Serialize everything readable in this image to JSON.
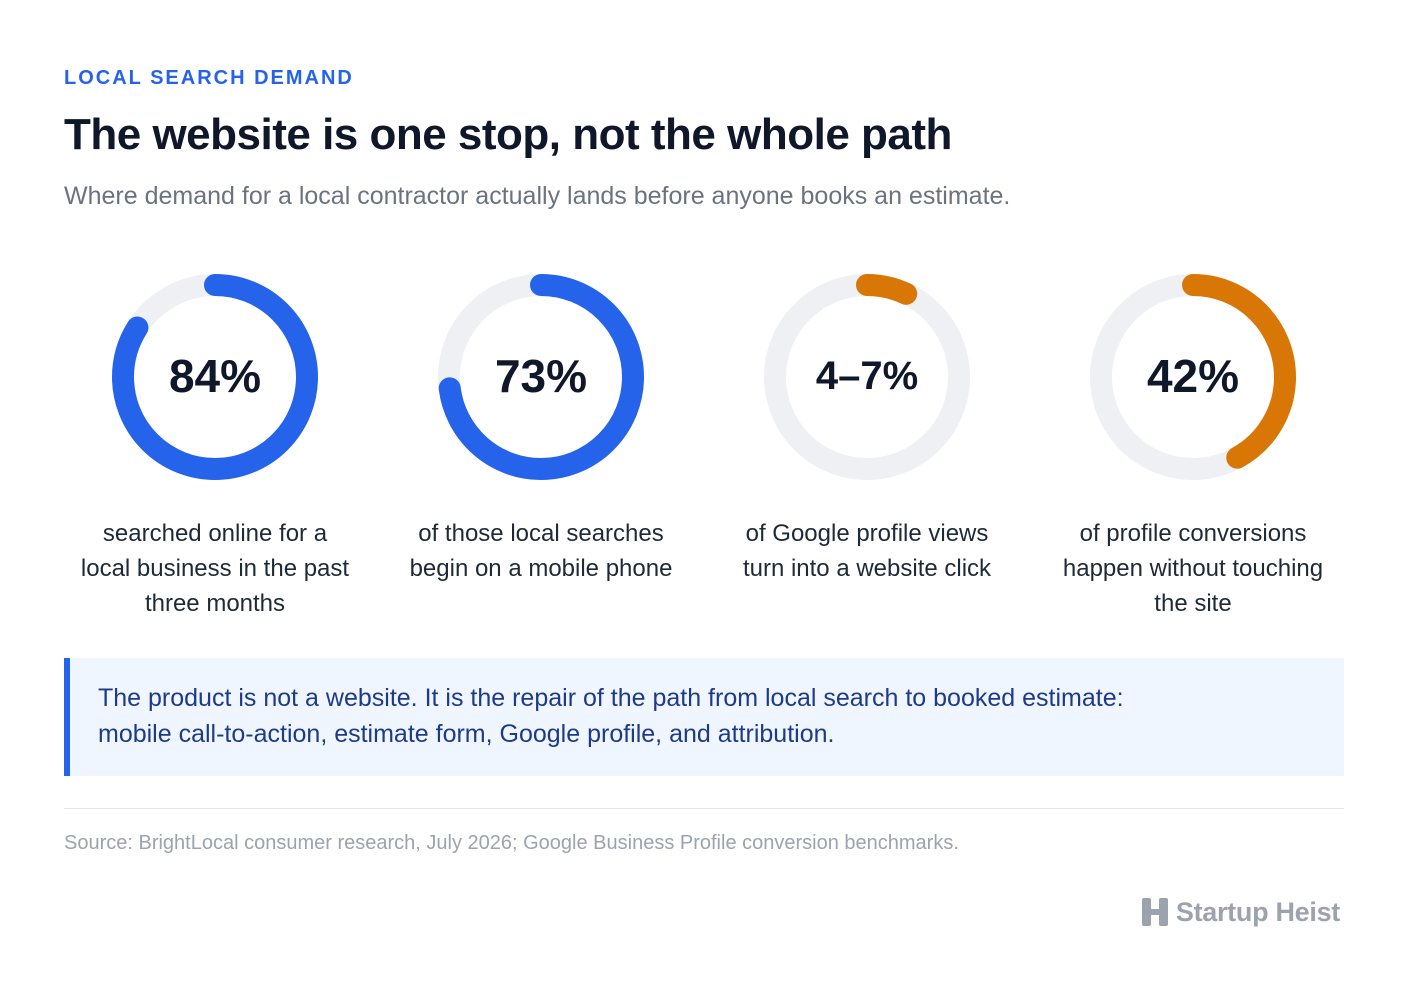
{
  "header": {
    "eyebrow": "LOCAL SEARCH DEMAND",
    "title": "The website is one stop, not the whole path",
    "subtitle": "Where demand for a local contractor actually lands before anyone books an estimate."
  },
  "chart_data": {
    "type": "donut",
    "items": [
      {
        "label": "84%",
        "value": 84,
        "caption": [
          "searched online for a",
          "local business in the past",
          "three months"
        ],
        "color": "#2563eb"
      },
      {
        "label": "73%",
        "value": 73,
        "caption": [
          "of those local searches",
          "begin on a mobile phone"
        ],
        "color": "#2563eb"
      },
      {
        "label": "4–7%",
        "value": 7,
        "range": [
          4,
          7
        ],
        "caption": [
          "of Google profile views",
          "turn into a website click"
        ],
        "color": "#d97706"
      },
      {
        "label": "42%",
        "value": 42,
        "caption": [
          "of profile conversions",
          "happen without touching",
          "the site"
        ],
        "color": "#d97706"
      }
    ],
    "track_color": "#eef0f4"
  },
  "callout": {
    "lines": [
      "The product is not a website. It is the repair of the path from local search to booked estimate:",
      "mobile call-to-action, estimate form, Google profile, and attribution."
    ]
  },
  "footer": {
    "source": "Source: BrightLocal consumer research, July 2026; Google Business Profile conversion benchmarks.",
    "brand": "Startup Heist",
    "brand_icon": "h-logo-icon"
  }
}
